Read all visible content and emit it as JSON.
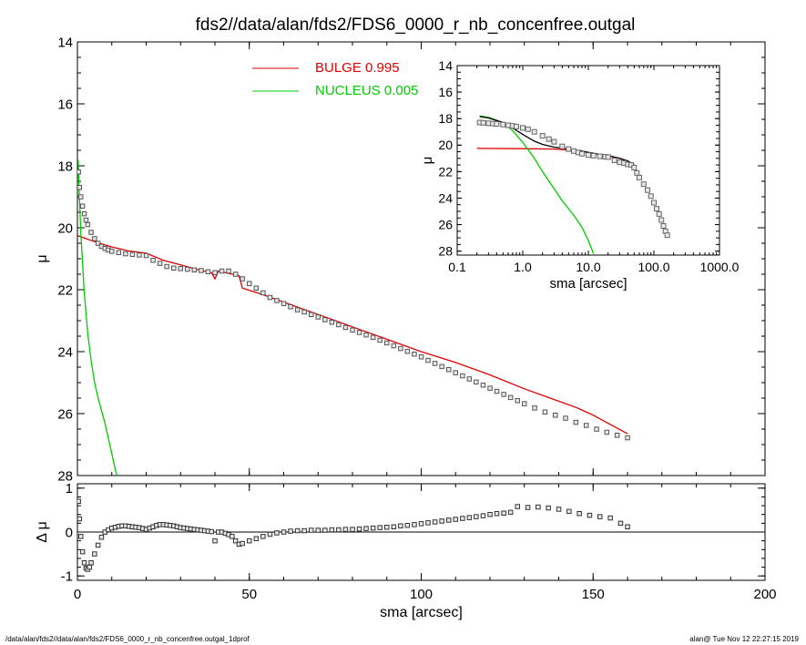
{
  "title": "fds2//data/alan/fds2/FDS6_0000_r_nb_concenfree.outgal",
  "footer": {
    "left": "/data/alan/fds2//data/alan/fds2/FDS6_0000_r_nb_concenfree.outgal_1dprof",
    "right": "alan@  Tue Nov 12 22:27:15 2019"
  },
  "colors": {
    "bulge": "#e00000",
    "nucleus": "#00cc00",
    "total": "#000000",
    "data": "#555555"
  },
  "chart_data": [
    {
      "id": "main",
      "type": "scatter",
      "xlabel": "sma [arcsec]",
      "ylabel": "μ",
      "xlim": [
        0,
        200
      ],
      "ylim": [
        28,
        14
      ],
      "y_inverted": true,
      "xticks": [
        "0",
        "50",
        "100",
        "150",
        "200"
      ],
      "yticks": [
        "14",
        "16",
        "18",
        "20",
        "22",
        "24",
        "26",
        "28"
      ],
      "legend": [
        {
          "label": "BULGE  0.995",
          "color": "#e00000"
        },
        {
          "label": "NUCLEUS  0.005",
          "color": "#00cc00"
        }
      ],
      "legend_position": "top-center",
      "series": [
        {
          "name": "BULGE",
          "kind": "line",
          "color": "#e00000",
          "x": [
            0,
            5,
            10,
            15,
            20,
            25,
            30,
            35,
            39,
            40,
            41,
            45,
            47,
            48,
            55,
            60,
            70,
            80,
            90,
            100,
            110,
            120,
            130,
            140,
            145,
            150,
            155,
            160
          ],
          "y": [
            20.25,
            20.45,
            20.62,
            20.75,
            20.82,
            21.05,
            21.2,
            21.35,
            21.45,
            21.65,
            21.4,
            21.5,
            21.55,
            21.95,
            22.2,
            22.4,
            22.8,
            23.2,
            23.6,
            24.0,
            24.35,
            24.75,
            25.2,
            25.6,
            25.8,
            26.05,
            26.35,
            26.65
          ]
        },
        {
          "name": "NUCLEUS",
          "kind": "line",
          "color": "#00cc00",
          "x": [
            0.2,
            0.5,
            1,
            2,
            3,
            4,
            5,
            6,
            7,
            8,
            9,
            10,
            11,
            11.5
          ],
          "y": [
            17.8,
            18.8,
            20.2,
            22.1,
            23.4,
            24.3,
            25.0,
            25.5,
            25.9,
            26.3,
            26.8,
            27.3,
            27.8,
            28.0
          ]
        },
        {
          "name": "data",
          "kind": "points",
          "color": "#555555",
          "x": [
            0.3,
            0.6,
            1,
            1.5,
            2,
            2.5,
            3,
            4,
            5,
            6,
            7,
            8,
            9,
            10,
            12,
            14,
            16,
            18,
            20,
            22,
            24,
            26,
            28,
            30,
            32,
            34,
            36,
            38,
            40,
            42,
            44,
            46,
            48,
            50,
            52,
            54,
            56,
            58,
            60,
            62,
            64,
            66,
            68,
            70,
            72,
            74,
            76,
            78,
            80,
            82,
            84,
            86,
            88,
            90,
            92,
            94,
            96,
            98,
            100,
            102,
            104,
            106,
            108,
            110,
            112,
            114,
            116,
            118,
            120,
            122,
            124,
            126,
            128,
            130,
            133,
            136,
            139,
            142,
            145,
            148,
            151,
            154,
            157,
            160
          ],
          "y": [
            18.2,
            18.7,
            19.0,
            19.3,
            19.55,
            19.75,
            19.9,
            20.15,
            20.35,
            20.5,
            20.6,
            20.67,
            20.72,
            20.76,
            20.8,
            20.84,
            20.86,
            20.88,
            20.9,
            21.05,
            21.15,
            21.25,
            21.3,
            21.32,
            21.34,
            21.36,
            21.38,
            21.42,
            21.45,
            21.4,
            21.4,
            21.5,
            21.65,
            21.8,
            21.95,
            22.1,
            22.25,
            22.35,
            22.45,
            22.55,
            22.65,
            22.72,
            22.8,
            22.88,
            22.97,
            23.05,
            23.13,
            23.22,
            23.3,
            23.38,
            23.46,
            23.54,
            23.63,
            23.72,
            23.81,
            23.9,
            23.99,
            24.08,
            24.17,
            24.28,
            24.38,
            24.48,
            24.58,
            24.68,
            24.78,
            24.88,
            24.98,
            25.08,
            25.18,
            25.28,
            25.38,
            25.48,
            25.58,
            25.68,
            25.82,
            25.95,
            26.05,
            26.15,
            26.28,
            26.38,
            26.5,
            26.6,
            26.7,
            26.78
          ]
        }
      ]
    },
    {
      "id": "residual",
      "type": "scatter",
      "xlabel": "sma [arcsec]",
      "ylabel": "Δ μ",
      "xlim": [
        0,
        200
      ],
      "ylim": [
        -1.1,
        1.1
      ],
      "xticks": [
        "0",
        "50",
        "100",
        "150",
        "200"
      ],
      "yticks": [
        "-1",
        "0",
        "1"
      ],
      "series": [
        {
          "name": "residual",
          "kind": "points",
          "color": "#333333",
          "x": [
            0.3,
            0.6,
            1,
            1.5,
            2,
            2.5,
            3,
            3.5,
            4,
            5,
            6,
            7,
            8,
            9,
            10,
            11,
            12,
            13,
            14,
            15,
            16,
            17,
            18,
            19,
            20,
            21,
            22,
            23,
            24,
            25,
            26,
            27,
            28,
            29,
            30,
            31,
            32,
            33,
            34,
            35,
            36,
            37,
            38,
            39,
            40,
            41,
            42,
            43,
            44,
            45,
            46,
            47,
            48,
            50,
            52,
            54,
            56,
            58,
            60,
            62,
            64,
            66,
            68,
            70,
            72,
            74,
            76,
            78,
            80,
            82,
            84,
            86,
            88,
            90,
            92,
            94,
            96,
            98,
            100,
            102,
            104,
            106,
            108,
            110,
            112,
            114,
            116,
            118,
            120,
            122,
            124,
            126,
            128,
            131,
            134,
            137,
            140,
            143,
            146,
            149,
            152,
            155,
            158,
            160
          ],
          "y": [
            0.7,
            0.3,
            -0.1,
            -0.45,
            -0.7,
            -0.82,
            -0.85,
            -0.8,
            -0.7,
            -0.5,
            -0.3,
            -0.12,
            0.0,
            0.05,
            0.09,
            0.11,
            0.13,
            0.14,
            0.14,
            0.13,
            0.12,
            0.11,
            0.1,
            0.08,
            0.06,
            0.09,
            0.12,
            0.15,
            0.17,
            0.17,
            0.16,
            0.15,
            0.14,
            0.12,
            0.1,
            0.09,
            0.08,
            0.07,
            0.06,
            0.05,
            0.04,
            0.03,
            0.02,
            0.01,
            -0.2,
            0.0,
            0.0,
            -0.03,
            -0.06,
            -0.1,
            -0.2,
            -0.28,
            -0.26,
            -0.2,
            -0.15,
            -0.1,
            -0.05,
            -0.02,
            0.0,
            0.02,
            0.03,
            0.03,
            0.04,
            0.04,
            0.04,
            0.05,
            0.05,
            0.06,
            0.06,
            0.07,
            0.08,
            0.09,
            0.1,
            0.11,
            0.12,
            0.14,
            0.15,
            0.17,
            0.19,
            0.21,
            0.23,
            0.25,
            0.27,
            0.29,
            0.31,
            0.33,
            0.35,
            0.37,
            0.4,
            0.42,
            0.43,
            0.45,
            0.58,
            0.56,
            0.57,
            0.55,
            0.52,
            0.47,
            0.42,
            0.38,
            0.35,
            0.32,
            0.2,
            0.12
          ]
        }
      ]
    },
    {
      "id": "inset",
      "type": "scatter",
      "xlabel": "sma [arcsec]",
      "ylabel": "μ",
      "x_scale": "log",
      "xlim": [
        0.1,
        1000
      ],
      "ylim": [
        28.3,
        14
      ],
      "y_inverted": true,
      "xticks": [
        "0.1",
        "1.0",
        "10.0",
        "100.0",
        "1000.0"
      ],
      "yticks": [
        "14",
        "16",
        "18",
        "20",
        "22",
        "24",
        "26",
        "28"
      ],
      "series": [
        {
          "name": "BULGE",
          "kind": "line",
          "color": "#e00000",
          "x": [
            0.2,
            1,
            3,
            6,
            10,
            15,
            20,
            30,
            40,
            50
          ],
          "y": [
            20.25,
            20.27,
            20.3,
            20.4,
            20.55,
            20.7,
            20.8,
            21.0,
            21.2,
            21.45
          ]
        },
        {
          "name": "NUCLEUS",
          "kind": "line",
          "color": "#00cc00",
          "x": [
            0.22,
            0.3,
            0.5,
            0.7,
            1,
            1.5,
            2,
            3,
            4,
            5,
            6,
            8,
            10,
            12
          ],
          "y": [
            17.8,
            17.9,
            18.3,
            18.9,
            19.8,
            21.0,
            22.0,
            23.3,
            24.2,
            24.8,
            25.3,
            26.2,
            27.2,
            28.2
          ]
        },
        {
          "name": "total",
          "kind": "line",
          "color": "#000000",
          "x": [
            0.22,
            0.3,
            0.5,
            0.7,
            1,
            1.5,
            2,
            3,
            5,
            8,
            10,
            15,
            20,
            30,
            40,
            50
          ],
          "y": [
            17.85,
            17.95,
            18.3,
            18.7,
            19.2,
            19.7,
            19.95,
            20.15,
            20.3,
            20.45,
            20.55,
            20.7,
            20.8,
            21.0,
            21.2,
            21.45
          ]
        },
        {
          "name": "data",
          "kind": "points",
          "color": "#666666",
          "x": [
            0.22,
            0.25,
            0.3,
            0.35,
            0.4,
            0.5,
            0.6,
            0.7,
            0.8,
            1,
            1.2,
            1.5,
            2,
            2.5,
            3,
            4,
            5,
            6,
            7,
            8,
            10,
            12,
            15,
            18,
            20,
            25,
            30,
            35,
            40,
            45,
            50,
            55,
            60,
            70,
            80,
            90,
            100,
            110,
            120,
            130,
            140,
            150,
            160
          ],
          "y": [
            18.3,
            18.32,
            18.35,
            18.38,
            18.4,
            18.45,
            18.5,
            18.55,
            18.6,
            18.7,
            18.8,
            19.0,
            19.3,
            19.55,
            19.75,
            20.1,
            20.3,
            20.45,
            20.55,
            20.65,
            20.75,
            20.8,
            20.85,
            20.88,
            20.9,
            21.15,
            21.3,
            21.35,
            21.45,
            21.5,
            21.7,
            22.1,
            22.45,
            22.95,
            23.4,
            23.85,
            24.35,
            24.8,
            25.2,
            25.65,
            26.1,
            26.5,
            26.8
          ]
        }
      ]
    }
  ]
}
